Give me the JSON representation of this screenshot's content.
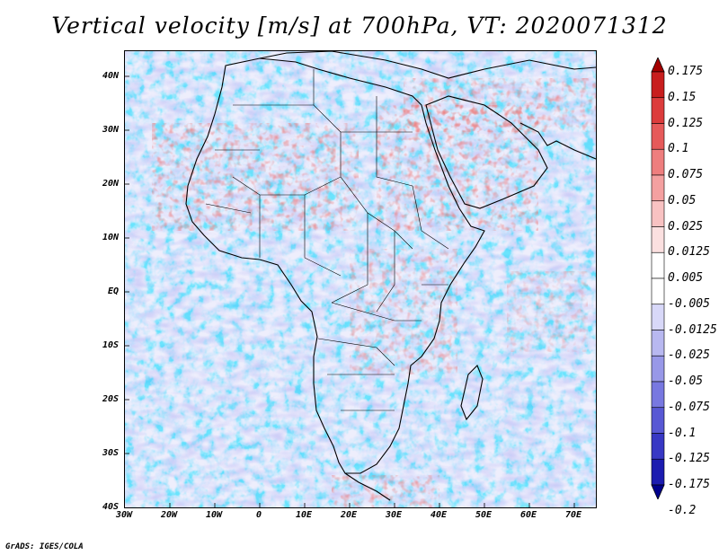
{
  "title": "Vertical velocity [m/s] at 700hPa, VT: 2020071312",
  "credit": "GrADS: IGES/COLA",
  "latitude_labels": [
    "40N",
    "30N",
    "20N",
    "10N",
    "EQ",
    "10S",
    "20S",
    "30S",
    "40S"
  ],
  "longitude_labels": [
    "30W",
    "20W",
    "10W",
    "0",
    "10E",
    "20E",
    "30E",
    "40E",
    "50E",
    "60E",
    "70E"
  ],
  "colorbar": {
    "labels": [
      "0.175",
      "0.15",
      "0.125",
      "0.1",
      "0.075",
      "0.05",
      "0.025",
      "0.0125",
      "0.005",
      "-0.005",
      "-0.0125",
      "-0.025",
      "-0.05",
      "-0.075",
      "-0.1",
      "-0.125",
      "-0.175",
      "-0.2"
    ],
    "colors": [
      "#a40000",
      "#c81e1e",
      "#dc3c3c",
      "#e65a5a",
      "#ee7e7e",
      "#f4a0a0",
      "#f8c2c2",
      "#fbe0e0",
      "#ffffff",
      "#ffffff",
      "#d8d8f8",
      "#b8b8f0",
      "#9898e8",
      "#7878e0",
      "#5858d4",
      "#3838c4",
      "#1c1cb0",
      "#00008c"
    ]
  },
  "map": {
    "region": "Africa and Middle East",
    "lon_range": [
      -30,
      75
    ],
    "lat_range": [
      -40,
      45
    ],
    "field": "vertical velocity",
    "level_hPa": 700,
    "valid_time": "2020071312"
  }
}
